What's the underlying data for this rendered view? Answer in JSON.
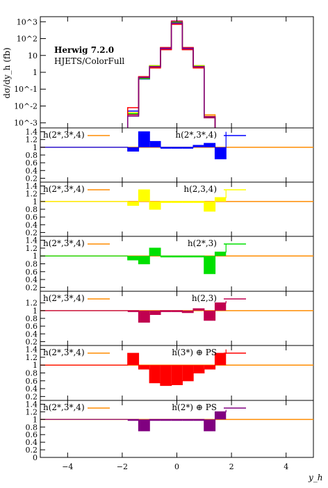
{
  "chart_data": {
    "type": "histogram",
    "top_panel": {
      "ylabel": "dσ/dy_h (fb)",
      "log_scale": true,
      "yticks": [
        "10^3",
        "10^2",
        "10",
        "1",
        "10^-1",
        "10^-2",
        "10^-3"
      ],
      "annotation_line1": "Herwig 7.2.0",
      "annotation_line2": "HJETS/ColorFull",
      "bins": [
        -1.8,
        -1.4,
        -1.0,
        -0.6,
        -0.2,
        0.2,
        0.6,
        1.0,
        1.4
      ],
      "series": [
        {
          "name": "h(2*,3*,4)",
          "color": "#ff8c00",
          "values": [
            0.003,
            0.5,
            2.5,
            30,
            1000,
            30,
            2.5,
            0.003
          ]
        },
        {
          "name": "h(2*,3*,4)",
          "color": "#0000ff",
          "values": [
            0.005,
            0.4,
            2.4,
            25,
            800,
            25,
            2.4,
            0.002
          ]
        },
        {
          "name": "h(2,3,4)",
          "color": "#ffff00",
          "values": [
            0.004,
            0.45,
            2.45,
            28,
            900,
            28,
            2.45,
            0.0025
          ]
        },
        {
          "name": "h(2*,3)",
          "color": "#00e000",
          "values": [
            0.0035,
            0.42,
            2.3,
            27,
            950,
            27,
            2.3,
            0.0022
          ]
        },
        {
          "name": "h(2,3)",
          "color": "#c0004f",
          "values": [
            0.003,
            0.48,
            2.2,
            29,
            1100,
            29,
            2.2,
            0.0024
          ]
        },
        {
          "name": "h(3*) ⊕ PS",
          "color": "#ff0000",
          "values": [
            0.008,
            0.55,
            1.8,
            22,
            700,
            22,
            1.8,
            0.002
          ]
        },
        {
          "name": "h(2*) ⊕ PS",
          "color": "#800080",
          "values": [
            0.0025,
            0.5,
            2.1,
            26,
            850,
            26,
            2.1,
            0.0021
          ]
        }
      ]
    },
    "ratio_panels": [
      {
        "reference": "h(2*,3*,4)",
        "ref_color": "#ff8c00",
        "label": "h(2*,3*,4)",
        "color": "#0000ff",
        "yticks": [
          "1.4",
          "1.2",
          "1",
          "0.8",
          "0.6",
          "0.4",
          "0.2"
        ],
        "bins": [
          -1.8,
          -1.4,
          -1.0,
          -0.6,
          -0.2,
          0.2,
          0.6,
          1.0,
          1.4,
          1.8
        ],
        "values": [
          0.9,
          1.4,
          1.15,
          1.0,
          1.0,
          1.0,
          1.05,
          1.1,
          0.7,
          1.4
        ]
      },
      {
        "reference": "h(2*,3*,4)",
        "ref_color": "#ff8c00",
        "label": "h(2,3,4)",
        "color": "#ffff00",
        "yticks": [
          "1.4",
          "1.2",
          "1",
          "0.8",
          "0.6",
          "0.4",
          "0.2"
        ],
        "bins": [
          -1.8,
          -1.4,
          -1.0,
          -0.6,
          -0.2,
          0.2,
          0.6,
          1.0,
          1.4,
          1.8
        ],
        "values": [
          0.9,
          1.3,
          0.8,
          1.0,
          1.0,
          1.0,
          1.0,
          0.75,
          1.1,
          1.3
        ]
      },
      {
        "reference": "h(2*,3*,4)",
        "ref_color": "#ff8c00",
        "label": "h(2*,3)",
        "color": "#00e000",
        "yticks": [
          "1.4",
          "1.2",
          "1",
          "0.8",
          "0.6",
          "0.4",
          "0.2"
        ],
        "bins": [
          -1.8,
          -1.4,
          -1.0,
          -0.6,
          -0.2,
          0.2,
          0.6,
          1.0,
          1.4,
          1.8
        ],
        "values": [
          0.9,
          0.8,
          1.2,
          1.0,
          1.0,
          1.0,
          1.0,
          0.55,
          1.1,
          1.3
        ]
      },
      {
        "reference": "h(2*,3*,4)",
        "ref_color": "#ff8c00",
        "label": "h(2,3)",
        "color": "#c0004f",
        "yticks": [
          "1.2",
          "1",
          "0.8",
          "0.6",
          "0.4",
          "0.2"
        ],
        "bins": [
          -1.8,
          -1.4,
          -1.0,
          -0.6,
          -0.2,
          0.2,
          0.6,
          1.0,
          1.4,
          1.8
        ],
        "values": [
          1.0,
          0.7,
          0.9,
          1.0,
          1.0,
          0.95,
          1.05,
          0.75,
          1.2,
          1.25
        ]
      },
      {
        "reference": "h(2*,3*,4)",
        "ref_color": "#ff8c00",
        "label": "h(3*) ⊕ PS",
        "color": "#ff0000",
        "yticks": [
          "1.4",
          "1.2",
          "1",
          "0.8",
          "0.6",
          "0.4",
          "0.2"
        ],
        "bins": [
          -1.8,
          -1.4,
          -1.0,
          -0.6,
          -0.2,
          0.2,
          0.6,
          1.0,
          1.4,
          1.8
        ],
        "values": [
          1.3,
          0.9,
          0.55,
          0.48,
          0.5,
          0.6,
          0.8,
          0.9,
          1.3,
          1.4
        ]
      },
      {
        "reference": "h(2*,3*,4)",
        "ref_color": "#ff8c00",
        "label": "h(2*) ⊕ PS",
        "color": "#800080",
        "yticks": [
          "1.4",
          "1.2",
          "1",
          "0.8",
          "0.6",
          "0.4",
          "0.2",
          "0"
        ],
        "bins": [
          -1.8,
          -1.4,
          -1.0,
          -0.6,
          -0.2,
          0.2,
          0.6,
          1.0,
          1.4,
          1.8
        ],
        "values": [
          1.0,
          0.7,
          1.0,
          1.0,
          1.0,
          1.0,
          1.0,
          0.7,
          1.2,
          1.25
        ]
      }
    ],
    "x_axis": {
      "label": "y_h",
      "xlim": [
        -5,
        5
      ],
      "ticks": [
        "-4",
        "-2",
        "0",
        "2",
        "4"
      ]
    },
    "grid": false
  }
}
